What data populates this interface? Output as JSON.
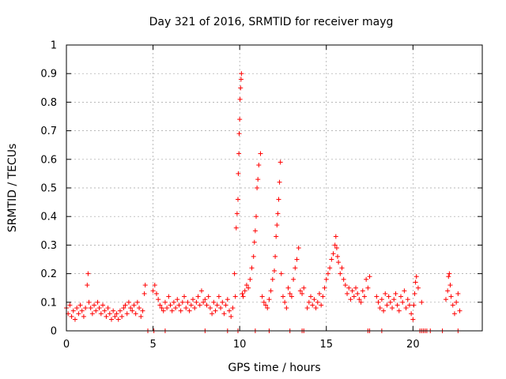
{
  "chart_data": {
    "type": "scatter",
    "title": "Day 321 of 2016, SRMTID for receiver mayg",
    "xlabel": "GPS time / hours",
    "ylabel": "SRMTID / TECUs",
    "xlim": [
      0,
      24
    ],
    "ylim": [
      0,
      1
    ],
    "xticks": [
      "0",
      "5",
      "10",
      "15",
      "20"
    ],
    "xtick_values": [
      0,
      5,
      10,
      15,
      20
    ],
    "yticks": [
      "0",
      "0.1",
      "0.2",
      "0.3",
      "0.4",
      "0.5",
      "0.6",
      "0.7",
      "0.8",
      "0.9",
      "1"
    ],
    "ytick_values": [
      0,
      0.1,
      0.2,
      0.3,
      0.4,
      0.5,
      0.6,
      0.7,
      0.8,
      0.9,
      1.0
    ],
    "grid": true,
    "marker": "+",
    "marker_color": "#ff0000",
    "series": [
      {
        "name": "SRMTID",
        "x": [
          0.0,
          0.1,
          0.2,
          0.3,
          0.4,
          0.5,
          0.6,
          0.7,
          0.8,
          0.9,
          1.0,
          1.1,
          1.2,
          1.25,
          1.3,
          1.4,
          1.5,
          1.6,
          1.7,
          1.8,
          1.9,
          2.0,
          2.1,
          2.2,
          2.3,
          2.4,
          2.5,
          2.6,
          2.7,
          2.8,
          2.9,
          3.0,
          3.1,
          3.2,
          3.3,
          3.4,
          3.5,
          3.6,
          3.7,
          3.8,
          3.9,
          4.0,
          4.1,
          4.2,
          4.3,
          4.4,
          4.5,
          4.55,
          5.0,
          5.1,
          5.2,
          5.3,
          5.4,
          5.5,
          5.6,
          5.7,
          5.8,
          5.9,
          6.0,
          6.1,
          6.2,
          6.3,
          6.4,
          6.5,
          6.6,
          6.7,
          6.8,
          6.9,
          7.0,
          7.1,
          7.2,
          7.3,
          7.4,
          7.5,
          7.6,
          7.7,
          7.8,
          7.9,
          8.0,
          8.1,
          8.2,
          8.3,
          8.4,
          8.5,
          8.6,
          8.7,
          8.8,
          8.9,
          9.0,
          9.1,
          9.2,
          9.3,
          9.4,
          9.5,
          9.6,
          9.7,
          9.75,
          9.8,
          9.85,
          9.9,
          9.92,
          9.95,
          9.97,
          10.0,
          10.02,
          10.05,
          10.08,
          10.1,
          10.15,
          10.2,
          10.3,
          10.4,
          10.5,
          10.6,
          10.7,
          10.8,
          10.85,
          10.9,
          10.95,
          11.0,
          11.05,
          11.1,
          11.2,
          11.3,
          11.4,
          11.5,
          11.6,
          11.7,
          11.8,
          11.9,
          12.0,
          12.05,
          12.1,
          12.15,
          12.2,
          12.25,
          12.3,
          12.35,
          12.4,
          12.5,
          12.6,
          12.7,
          12.8,
          12.9,
          13.0,
          13.1,
          13.2,
          13.3,
          13.4,
          13.5,
          13.6,
          13.7,
          13.9,
          14.0,
          14.1,
          14.2,
          14.3,
          14.4,
          14.5,
          14.6,
          14.7,
          14.8,
          14.9,
          15.0,
          15.1,
          15.2,
          15.3,
          15.4,
          15.5,
          15.55,
          15.6,
          15.65,
          15.7,
          15.8,
          15.9,
          16.0,
          16.1,
          16.2,
          16.3,
          16.4,
          16.5,
          16.6,
          16.7,
          16.8,
          16.9,
          17.0,
          17.1,
          17.2,
          17.3,
          17.4,
          17.5,
          17.9,
          18.0,
          18.1,
          18.2,
          18.3,
          18.4,
          18.5,
          18.6,
          18.7,
          18.8,
          18.9,
          19.0,
          19.1,
          19.2,
          19.3,
          19.4,
          19.5,
          19.6,
          19.7,
          19.8,
          19.9,
          20.0,
          20.05,
          20.1,
          20.15,
          20.2,
          20.3,
          20.5,
          21.9,
          22.0,
          22.05,
          22.1,
          22.15,
          22.2,
          22.3,
          22.4,
          22.5,
          22.6,
          22.7,
          4.7,
          5.05,
          5.7,
          8.0,
          9.3,
          9.9,
          10.9,
          11.7,
          12.9,
          13.6,
          13.7,
          17.4,
          17.5,
          18.2,
          20.4,
          20.5,
          20.6,
          20.7,
          20.8,
          21.0,
          21.7,
          22.6
        ],
        "y": [
          0.08,
          0.06,
          0.09,
          0.05,
          0.07,
          0.04,
          0.08,
          0.06,
          0.09,
          0.07,
          0.05,
          0.08,
          0.16,
          0.2,
          0.1,
          0.08,
          0.06,
          0.09,
          0.07,
          0.1,
          0.08,
          0.06,
          0.09,
          0.07,
          0.05,
          0.08,
          0.06,
          0.04,
          0.07,
          0.05,
          0.06,
          0.04,
          0.07,
          0.05,
          0.08,
          0.09,
          0.06,
          0.1,
          0.08,
          0.07,
          0.09,
          0.06,
          0.1,
          0.08,
          0.05,
          0.07,
          0.13,
          0.16,
          0.14,
          0.16,
          0.13,
          0.11,
          0.09,
          0.08,
          0.07,
          0.1,
          0.08,
          0.12,
          0.09,
          0.07,
          0.1,
          0.08,
          0.11,
          0.09,
          0.07,
          0.1,
          0.12,
          0.08,
          0.1,
          0.07,
          0.09,
          0.11,
          0.08,
          0.1,
          0.12,
          0.09,
          0.14,
          0.1,
          0.11,
          0.09,
          0.12,
          0.08,
          0.06,
          0.1,
          0.07,
          0.09,
          0.12,
          0.08,
          0.1,
          0.06,
          0.09,
          0.11,
          0.07,
          0.05,
          0.08,
          0.2,
          0.12,
          0.36,
          0.41,
          0.46,
          0.55,
          0.62,
          0.69,
          0.74,
          0.81,
          0.85,
          0.88,
          0.9,
          0.13,
          0.12,
          0.14,
          0.16,
          0.15,
          0.18,
          0.22,
          0.26,
          0.31,
          0.35,
          0.4,
          0.5,
          0.53,
          0.58,
          0.62,
          0.12,
          0.1,
          0.09,
          0.08,
          0.11,
          0.14,
          0.18,
          0.21,
          0.26,
          0.33,
          0.37,
          0.41,
          0.46,
          0.52,
          0.59,
          0.2,
          0.12,
          0.1,
          0.08,
          0.15,
          0.13,
          0.12,
          0.18,
          0.22,
          0.25,
          0.29,
          0.14,
          0.13,
          0.15,
          0.08,
          0.1,
          0.12,
          0.09,
          0.11,
          0.08,
          0.1,
          0.13,
          0.09,
          0.12,
          0.15,
          0.18,
          0.2,
          0.22,
          0.25,
          0.27,
          0.3,
          0.33,
          0.29,
          0.26,
          0.24,
          0.2,
          0.22,
          0.18,
          0.16,
          0.13,
          0.15,
          0.11,
          0.14,
          0.12,
          0.15,
          0.13,
          0.11,
          0.1,
          0.14,
          0.12,
          0.18,
          0.15,
          0.19,
          0.12,
          0.1,
          0.08,
          0.11,
          0.07,
          0.13,
          0.09,
          0.12,
          0.1,
          0.08,
          0.11,
          0.13,
          0.09,
          0.07,
          0.12,
          0.1,
          0.14,
          0.08,
          0.11,
          0.09,
          0.06,
          0.04,
          0.09,
          0.13,
          0.17,
          0.19,
          0.15,
          0.1,
          0.11,
          0.14,
          0.19,
          0.2,
          0.16,
          0.12,
          0.09,
          0.06,
          0.1,
          0.13,
          0.07,
          0.0,
          0.0,
          0.0,
          0.0,
          0.0,
          0.0,
          0.0,
          0.0,
          0.0,
          0.0,
          0.0,
          0.0,
          0.0,
          0.0,
          0.0,
          0.0,
          0.0,
          0.0,
          0.0,
          0.0,
          0.0,
          0.0
        ]
      }
    ]
  }
}
